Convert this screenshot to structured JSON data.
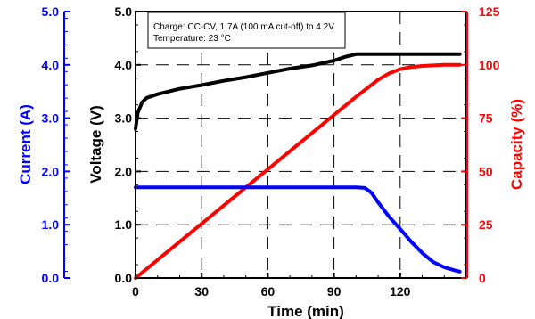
{
  "chart_data": {
    "type": "line",
    "annotation": {
      "line1": "Charge: CC-CV, 1.7A (100 mA cut-off) to 4.2V",
      "line2": "Temperature: 23 °C"
    },
    "x_axis": {
      "label": "Time (min)",
      "range": [
        0,
        150
      ],
      "ticks": [
        0,
        30,
        60,
        90,
        120
      ],
      "tick_labels": [
        "0",
        "30",
        "60",
        "90",
        "120"
      ]
    },
    "y_axes": {
      "current": {
        "label": "Current (A)",
        "color": "#0000ff",
        "range": [
          0,
          5
        ],
        "ticks": [
          0,
          1,
          2,
          3,
          4,
          5
        ],
        "tick_labels": [
          "0.0",
          "1.0",
          "2.0",
          "3.0",
          "4.0",
          "5.0"
        ]
      },
      "voltage": {
        "label": "Voltage (V)",
        "color": "#000000",
        "range": [
          0,
          5
        ],
        "ticks": [
          0,
          1,
          2,
          3,
          4,
          5
        ],
        "tick_labels": [
          "0.0",
          "1.0",
          "2.0",
          "3.0",
          "4.0",
          "5.0"
        ]
      },
      "capacity": {
        "label": "Capacity (%)",
        "color": "#ff0000",
        "range": [
          0,
          125
        ],
        "ticks": [
          0,
          25,
          50,
          75,
          100,
          125
        ],
        "tick_labels": [
          "0",
          "25",
          "50",
          "75",
          "100",
          "125"
        ]
      }
    },
    "grid": "dashed",
    "series": [
      {
        "key": "voltage",
        "axis": "voltage",
        "color": "#000000",
        "points": [
          [
            0,
            2.8
          ],
          [
            1,
            3.1
          ],
          [
            3,
            3.3
          ],
          [
            5,
            3.38
          ],
          [
            10,
            3.45
          ],
          [
            20,
            3.55
          ],
          [
            30,
            3.62
          ],
          [
            40,
            3.7
          ],
          [
            50,
            3.77
          ],
          [
            60,
            3.85
          ],
          [
            70,
            3.93
          ],
          [
            80,
            3.99
          ],
          [
            90,
            4.08
          ],
          [
            95,
            4.15
          ],
          [
            100,
            4.2
          ],
          [
            110,
            4.2
          ],
          [
            120,
            4.2
          ],
          [
            130,
            4.2
          ],
          [
            147,
            4.2
          ]
        ]
      },
      {
        "key": "capacity",
        "axis": "capacity",
        "color": "#ff0000",
        "points": [
          [
            0,
            0
          ],
          [
            10,
            8.5
          ],
          [
            20,
            17
          ],
          [
            30,
            25.5
          ],
          [
            40,
            34
          ],
          [
            50,
            42.5
          ],
          [
            60,
            51
          ],
          [
            70,
            59.5
          ],
          [
            80,
            68
          ],
          [
            90,
            76.5
          ],
          [
            100,
            85
          ],
          [
            105,
            89
          ],
          [
            110,
            93
          ],
          [
            115,
            96
          ],
          [
            120,
            98
          ],
          [
            125,
            99
          ],
          [
            130,
            99.5
          ],
          [
            140,
            100
          ],
          [
            147,
            100
          ]
        ]
      },
      {
        "key": "current",
        "axis": "current",
        "color": "#0000ff",
        "points": [
          [
            0,
            1.7
          ],
          [
            20,
            1.7
          ],
          [
            40,
            1.7
          ],
          [
            60,
            1.7
          ],
          [
            80,
            1.7
          ],
          [
            100,
            1.7
          ],
          [
            104,
            1.69
          ],
          [
            107,
            1.6
          ],
          [
            110,
            1.42
          ],
          [
            115,
            1.15
          ],
          [
            120,
            0.92
          ],
          [
            125,
            0.68
          ],
          [
            130,
            0.47
          ],
          [
            135,
            0.3
          ],
          [
            140,
            0.2
          ],
          [
            145,
            0.14
          ],
          [
            147,
            0.12
          ]
        ]
      }
    ]
  }
}
